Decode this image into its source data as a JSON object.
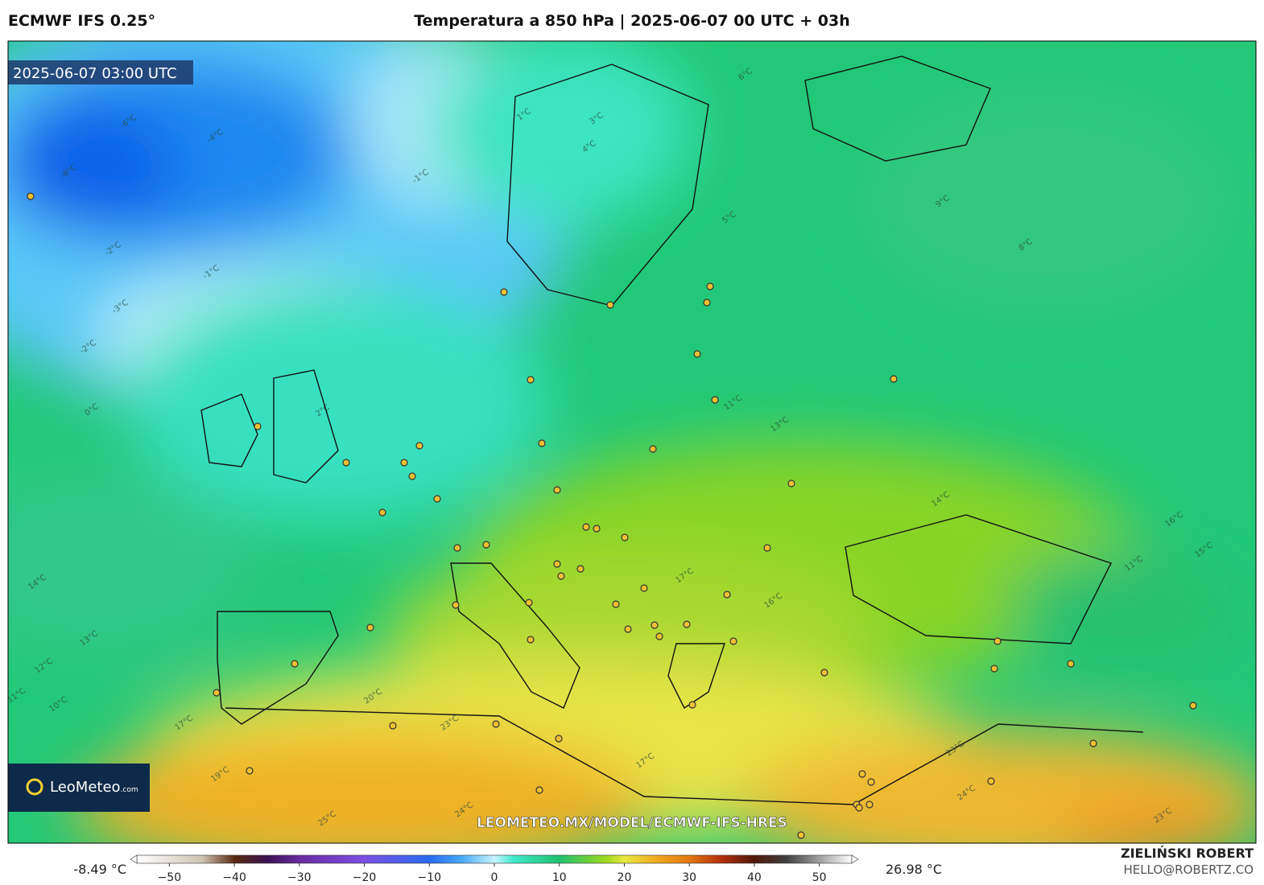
{
  "header": {
    "model": "ECMWF IFS 0.25°",
    "title": "Temperatura a 850 hPa | 2025-06-07 00 UTC + 03h"
  },
  "map": {
    "valid_time": "2025-06-07 03:00 UTC",
    "logo": "LeoMeteo",
    "logo_suffix": ".com",
    "watermark": "LEOMETEO.MX/MODEL/ECMWF-IFS-HRES",
    "contour_labels": [
      "-8°C",
      "-6°C",
      "-4°C",
      "-2°C",
      "-1°C",
      "-3°C",
      "-2°C",
      "0°C",
      "1°C",
      "3°C",
      "4°C",
      "5°C",
      "6°C",
      "9°C",
      "11°C",
      "13°C",
      "14°C",
      "16°C",
      "17°C",
      "14°C",
      "13°C",
      "12°C",
      "11°C",
      "10°C",
      "17°C",
      "19°C",
      "20°C",
      "23°C",
      "24°C",
      "25°C",
      "17°C",
      "23°C",
      "24°C",
      "23°C",
      "15°C",
      "11°C",
      "16°C",
      "-1°C",
      "2°C",
      "8°C"
    ]
  },
  "colorbar": {
    "min_label": "-8.49 °C",
    "max_label": "26.98 °C",
    "lim": [
      -55,
      55
    ],
    "ticks": [
      {
        "value": -50,
        "label": "−50"
      },
      {
        "value": -40,
        "label": "−40"
      },
      {
        "value": -30,
        "label": "−30"
      },
      {
        "value": -20,
        "label": "−20"
      },
      {
        "value": -10,
        "label": "−10"
      },
      0,
      10,
      20,
      30,
      40,
      50
    ],
    "colormap": [
      [
        -55,
        "#ffffff"
      ],
      [
        -45,
        "#cfc4b4"
      ],
      [
        -40,
        "#5a2a10"
      ],
      [
        -35,
        "#3a1050"
      ],
      [
        -30,
        "#6a2aa0"
      ],
      [
        -20,
        "#7a50e0"
      ],
      [
        -10,
        "#2a6af0"
      ],
      [
        -5,
        "#4aaaf8"
      ],
      [
        0,
        "#c8f4ff"
      ],
      [
        3,
        "#40e8c8"
      ],
      [
        10,
        "#20c070"
      ],
      [
        17,
        "#9ad820"
      ],
      [
        20,
        "#e8e840"
      ],
      [
        25,
        "#f0a820"
      ],
      [
        30,
        "#e07810"
      ],
      [
        35,
        "#b03010"
      ],
      [
        40,
        "#501808"
      ],
      [
        45,
        "#404040"
      ],
      [
        50,
        "#a0a0a0"
      ],
      [
        55,
        "#ffffff"
      ]
    ]
  },
  "credit": {
    "author": "ZIELIŃSKI ROBERT",
    "email": "HELLO@ROBERTZ.CO"
  }
}
